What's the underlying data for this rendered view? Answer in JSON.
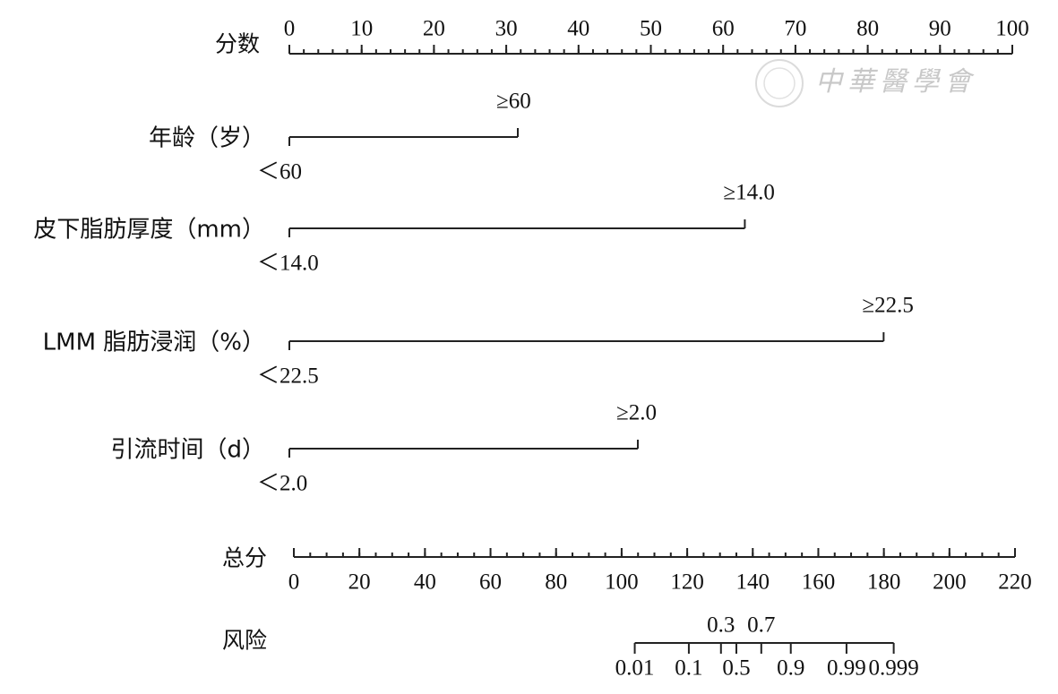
{
  "chart_data": {
    "type": "nomogram",
    "watermark": "中華醫學會",
    "points_axis": {
      "label": "分数",
      "xlim": [
        0,
        100
      ],
      "xticks": [
        0,
        10,
        20,
        30,
        40,
        50,
        60,
        70,
        80,
        90,
        100
      ]
    },
    "variables": [
      {
        "name": "年龄（岁）",
        "categories": [
          "＜60",
          "≥60"
        ],
        "values": [
          0,
          31.6
        ]
      },
      {
        "name": "皮下脂肪厚度（mm）",
        "categories": [
          "＜14.0",
          "≥14.0"
        ],
        "values": [
          0,
          63
        ]
      },
      {
        "name": "LMM 脂肪浸润（%）",
        "categories": [
          "＜22.5",
          "≥22.5"
        ],
        "values": [
          0,
          82.2
        ]
      },
      {
        "name": "引流时间（d）",
        "categories": [
          "＜2.0",
          "≥2.0"
        ],
        "values": [
          0,
          48.2
        ]
      }
    ],
    "total_axis": {
      "label": "总分",
      "xlim": [
        0,
        220
      ],
      "xticks": [
        0,
        20,
        40,
        60,
        80,
        100,
        120,
        140,
        160,
        180,
        200,
        220
      ]
    },
    "risk_axis": {
      "label": "风险",
      "ticks": [
        0.01,
        0.1,
        0.3,
        0.5,
        0.7,
        0.9,
        0.99,
        0.999
      ],
      "tick_points": [
        104,
        120.5,
        130.3,
        135,
        142.6,
        151.6,
        168.6,
        183
      ]
    }
  }
}
